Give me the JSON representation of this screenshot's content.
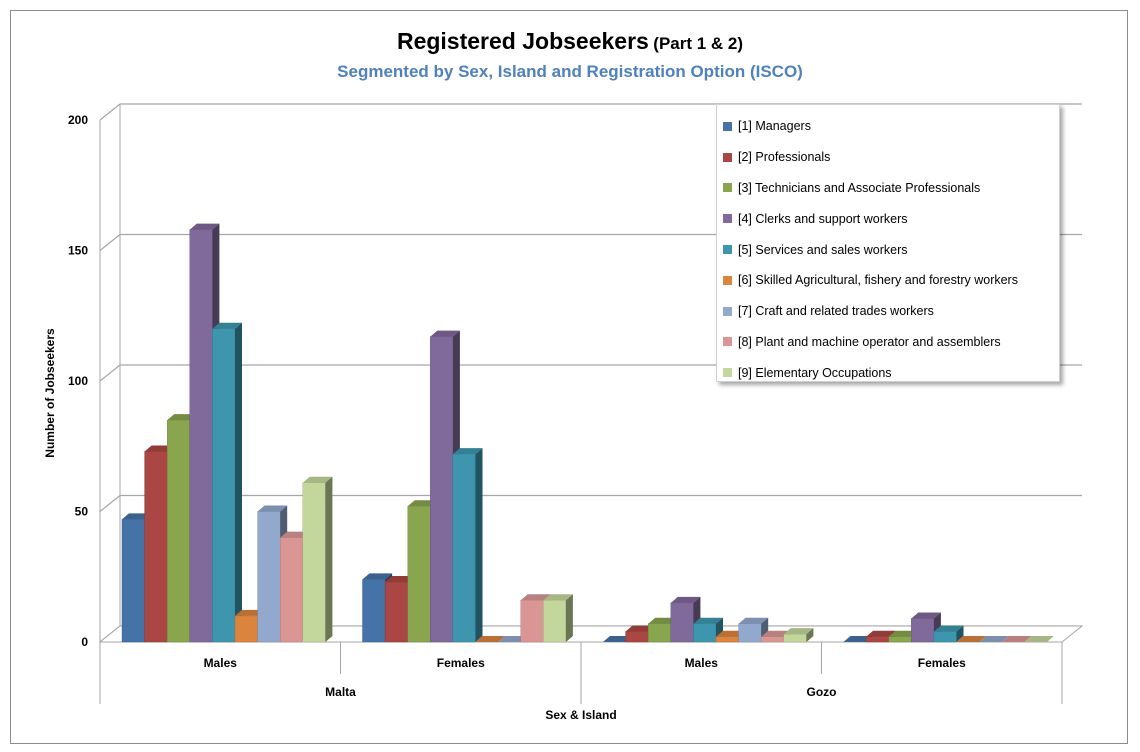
{
  "chart_data": {
    "type": "bar",
    "title": "Registered Jobseekers",
    "title_suffix": "(Part 1 & 2)",
    "subtitle": "Segmented by Sex, Island and Registration Option (ISCO)",
    "xlabel": "Sex & Island",
    "ylabel": "Number of Jobseekers",
    "ylim": [
      0,
      200
    ],
    "yticks": [
      0,
      50,
      100,
      150,
      200
    ],
    "categories": [
      "Males",
      "Females",
      "Males",
      "Females"
    ],
    "groups": [
      {
        "label": "Malta",
        "span": 2
      },
      {
        "label": "Gozo",
        "span": 2
      }
    ],
    "grid": true,
    "legend_position": "right",
    "series": [
      {
        "name": "[1] Managers",
        "color": "#4572a7",
        "values": [
          47,
          24,
          0,
          0
        ]
      },
      {
        "name": "[2] Professionals",
        "color": "#aa4643",
        "values": [
          73,
          23,
          4,
          2
        ]
      },
      {
        "name": "[3] Technicians and Associate Professionals",
        "color": "#89a54e",
        "values": [
          85,
          52,
          7,
          2
        ]
      },
      {
        "name": "[4] Clerks and support workers",
        "color": "#80699b",
        "values": [
          158,
          117,
          15,
          9
        ]
      },
      {
        "name": "[5] Services and sales workers",
        "color": "#3d96ae",
        "values": [
          120,
          72,
          7,
          4
        ]
      },
      {
        "name": "[6] Skilled Agricultural, fishery and forestry workers",
        "color": "#db843d",
        "values": [
          10,
          0,
          2,
          0
        ]
      },
      {
        "name": "[7] Craft and related trades workers",
        "color": "#92a8cd",
        "values": [
          50,
          0,
          7,
          0
        ]
      },
      {
        "name": "[8] Plant and machine operator and assemblers",
        "color": "#d99694",
        "values": [
          40,
          16,
          2,
          0
        ]
      },
      {
        "name": "[9] Elementary Occupations",
        "color": "#c3d69b",
        "values": [
          61,
          16,
          3,
          0
        ]
      }
    ]
  }
}
